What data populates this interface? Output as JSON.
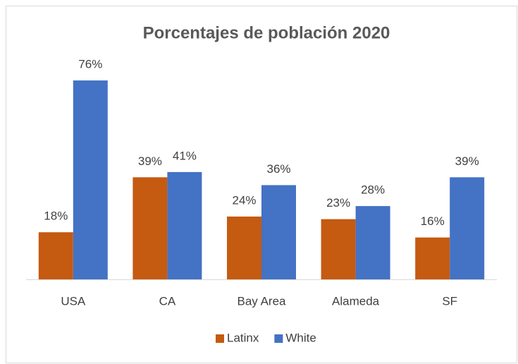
{
  "chart_data": {
    "type": "bar",
    "title": "Porcentajes de población 2020",
    "categories": [
      "USA",
      "CA",
      "Bay Area",
      "Alameda",
      "SF"
    ],
    "series": [
      {
        "name": "Latinx",
        "color": "#c55a11",
        "values": [
          18,
          39,
          24,
          23,
          16
        ],
        "value_labels": [
          "18%",
          "39%",
          "24%",
          "23%",
          "16%"
        ]
      },
      {
        "name": "White",
        "color": "#4472c4",
        "values": [
          76,
          41,
          36,
          28,
          39
        ],
        "value_labels": [
          "76%",
          "41%",
          "36%",
          "28%",
          "39%"
        ]
      }
    ],
    "legend": "bottom"
  }
}
